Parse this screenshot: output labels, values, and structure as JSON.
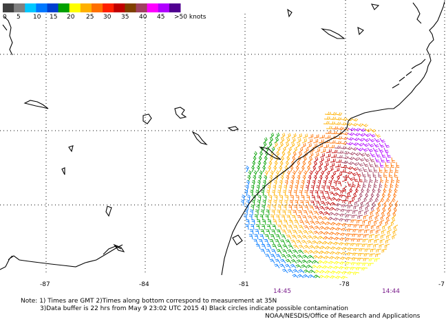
{
  "legend": {
    "unit_label": ">50 knots",
    "ticks": [
      "0",
      "5",
      "10",
      "15",
      "20",
      "25",
      "30",
      "35",
      "40",
      "45"
    ],
    "colors": [
      "#404040",
      "#808080",
      "#00c8ff",
      "#0078ff",
      "#0040d0",
      "#00a000",
      "#ffff00",
      "#ffb000",
      "#ff7000",
      "#ff2000",
      "#c00000",
      "#804000",
      "#a04060",
      "#ff00ff",
      "#b000ff",
      "#500090"
    ]
  },
  "axis": {
    "lon_labels": [
      "-87",
      "-84",
      "-81",
      "-78",
      "-7"
    ],
    "times": [
      "14:45",
      "14:44"
    ]
  },
  "notes": {
    "line1": "Note: 1) Times are GMT 2)Times along bottom correspond to measurement at 35N",
    "line2": "3)Data buffer is 22 hrs from May  9 23:02 UTC 2015 4) Black circles indicate possible contamination",
    "line3": "NOAA/NESDIS/Office of Research and Applications"
  },
  "map": {
    "storm_center": {
      "lon": -77.5,
      "lat": 31.9
    },
    "grid": "dotted"
  }
}
